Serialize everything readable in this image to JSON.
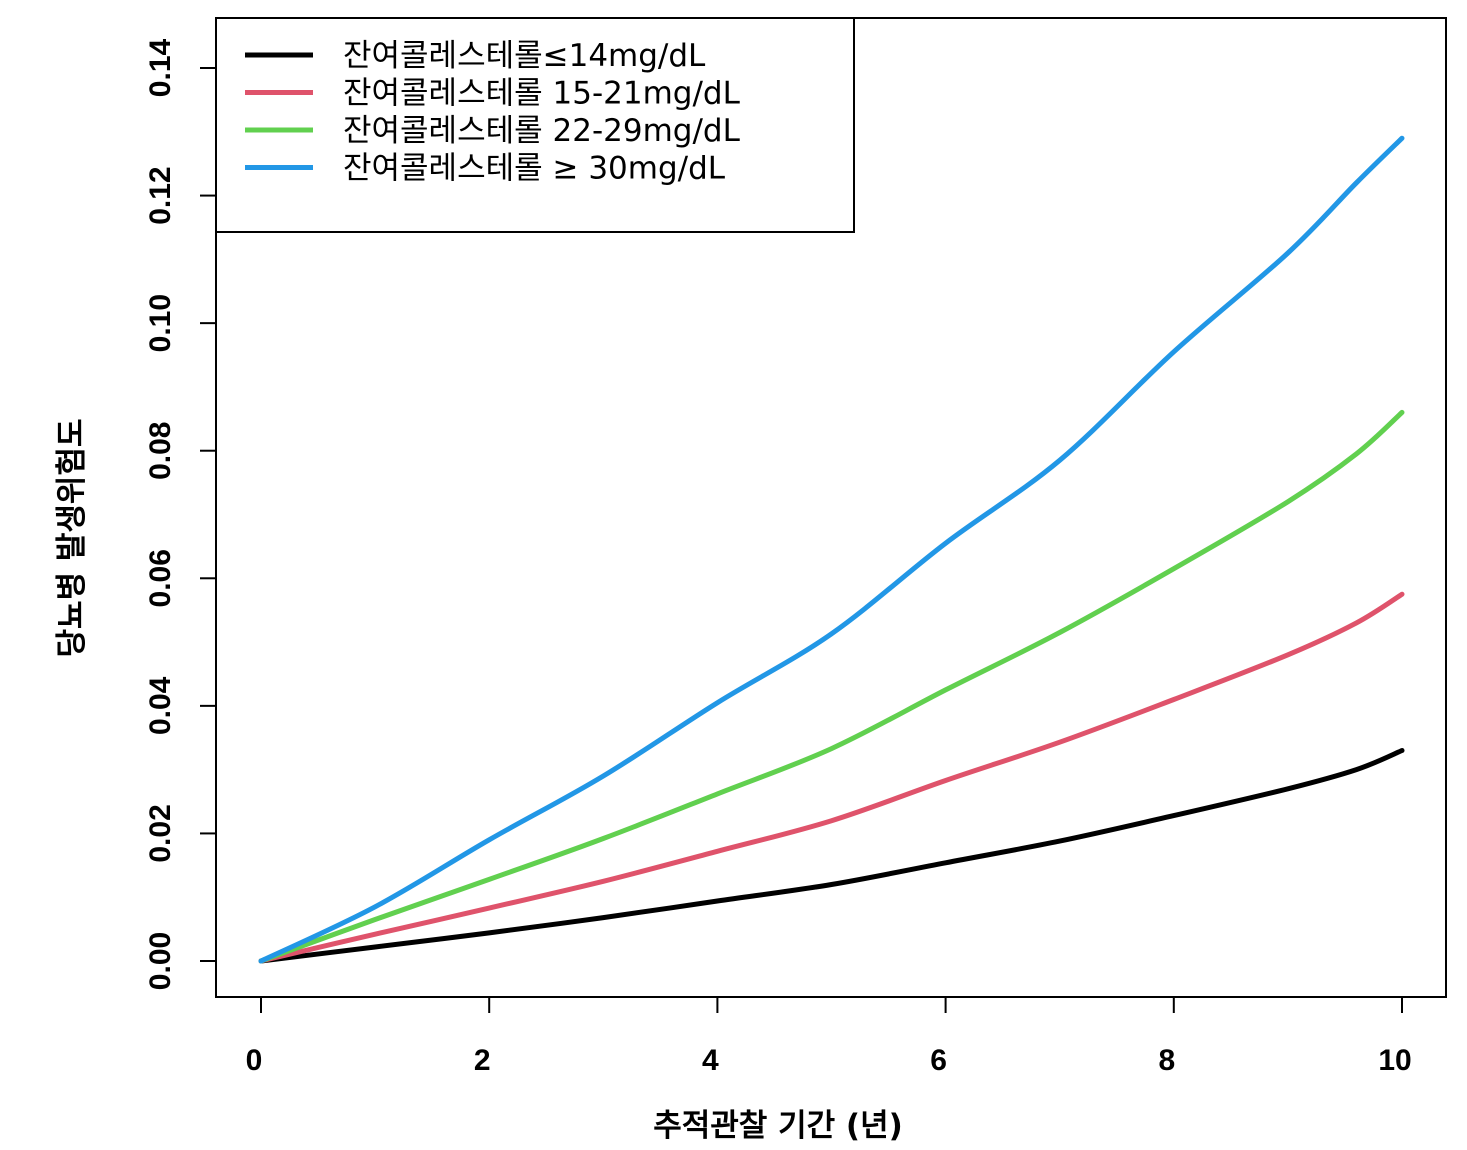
{
  "chart_data": {
    "type": "line",
    "xlabel": "추적관찰 기간 (년)",
    "ylabel": "당뇨병 발생위험도",
    "xlim": [
      0,
      10
    ],
    "ylim": [
      0,
      0.14
    ],
    "x_ticks": [
      "0",
      "2",
      "4",
      "6",
      "8",
      "10"
    ],
    "y_ticks": [
      "0.00",
      "0.02",
      "0.04",
      "0.06",
      "0.08",
      "0.10",
      "0.12",
      "0.14"
    ],
    "legend_position": "top-left",
    "grid": false,
    "x": [
      0,
      1,
      2,
      3,
      4,
      5,
      6,
      7,
      8,
      9,
      9.6,
      10
    ],
    "series": [
      {
        "name": "잔여콜레스테롤≤14mg/dL",
        "color": "#000000",
        "values": [
          0,
          0.0022,
          0.0044,
          0.0068,
          0.0094,
          0.012,
          0.0154,
          0.0188,
          0.0228,
          0.027,
          0.03,
          0.033
        ]
      },
      {
        "name": "잔여콜레스테롤 15-21mg/dL",
        "color": "#DF536B",
        "values": [
          0,
          0.0042,
          0.0083,
          0.0125,
          0.0172,
          0.022,
          0.0283,
          0.0343,
          0.041,
          0.048,
          0.053,
          0.0575
        ]
      },
      {
        "name": "잔여콜레스테롤 22-29mg/dL",
        "color": "#61D04F",
        "values": [
          0,
          0.0065,
          0.0128,
          0.0192,
          0.0262,
          0.0333,
          0.0425,
          0.0515,
          0.0615,
          0.072,
          0.0795,
          0.086
        ]
      },
      {
        "name": "잔여콜레스테롤 ≥ 30mg/dL",
        "color": "#2297E6",
        "values": [
          0,
          0.0085,
          0.019,
          0.029,
          0.0405,
          0.0513,
          0.0655,
          0.0785,
          0.0955,
          0.111,
          0.122,
          0.129
        ]
      }
    ]
  }
}
